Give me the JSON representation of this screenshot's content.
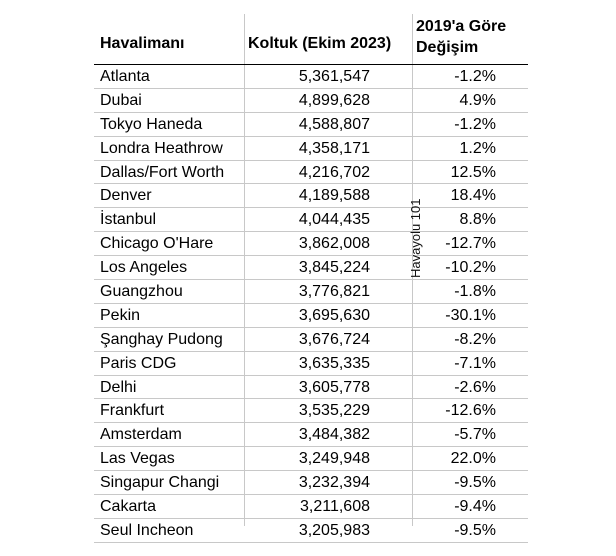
{
  "table": {
    "headers": {
      "airport": "Havalimanı",
      "seats": "Koltuk (Ekim 2023)",
      "change_line1": "2019'a Göre",
      "change_line2": "Değişim"
    },
    "rows": [
      {
        "airport": "Atlanta",
        "seats": "5,361,547",
        "change": "-1.2%"
      },
      {
        "airport": "Dubai",
        "seats": "4,899,628",
        "change": "4.9%"
      },
      {
        "airport": "Tokyo Haneda",
        "seats": "4,588,807",
        "change": "-1.2%"
      },
      {
        "airport": "Londra Heathrow",
        "seats": "4,358,171",
        "change": "1.2%"
      },
      {
        "airport": "Dallas/Fort Worth",
        "seats": "4,216,702",
        "change": "12.5%"
      },
      {
        "airport": "Denver",
        "seats": "4,189,588",
        "change": "18.4%"
      },
      {
        "airport": "İstanbul",
        "seats": "4,044,435",
        "change": "8.8%"
      },
      {
        "airport": "Chicago O'Hare",
        "seats": "3,862,008",
        "change": "-12.7%"
      },
      {
        "airport": "Los Angeles",
        "seats": "3,845,224",
        "change": "-10.2%"
      },
      {
        "airport": "Guangzhou",
        "seats": "3,776,821",
        "change": "-1.8%"
      },
      {
        "airport": "Pekin",
        "seats": "3,695,630",
        "change": "-30.1%"
      },
      {
        "airport": "Şanghay Pudong",
        "seats": "3,676,724",
        "change": "-8.2%"
      },
      {
        "airport": "Paris CDG",
        "seats": "3,635,335",
        "change": "-7.1%"
      },
      {
        "airport": "Delhi",
        "seats": "3,605,778",
        "change": "-2.6%"
      },
      {
        "airport": "Frankfurt",
        "seats": "3,535,229",
        "change": "-12.6%"
      },
      {
        "airport": "Amsterdam",
        "seats": "3,484,382",
        "change": "-5.7%"
      },
      {
        "airport": "Las Vegas",
        "seats": "3,249,948",
        "change": "22.0%"
      },
      {
        "airport": "Singapur Changi",
        "seats": "3,232,394",
        "change": "-9.5%"
      },
      {
        "airport": "Cakarta",
        "seats": "3,211,608",
        "change": "-9.4%"
      },
      {
        "airport": "Seul Incheon",
        "seats": "3,205,983",
        "change": "-9.5%"
      }
    ]
  },
  "watermark": "Havayolu 101"
}
